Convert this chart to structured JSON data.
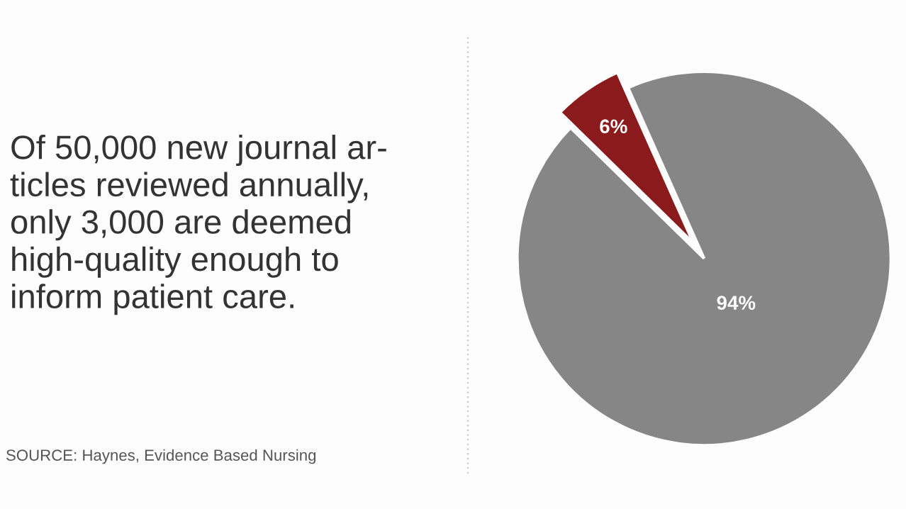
{
  "chart_data": {
    "type": "pie",
    "title": "Of 50,000 new journal ar-\nticles reviewed annually,\nonly 3,000 are deemed\nhigh-quality enough to\ninform patient care.",
    "categories": [
      null,
      null
    ],
    "values": [
      6,
      94
    ],
    "colors": [
      "#8b1a1c",
      "#868686"
    ],
    "value_labels": [
      "6%",
      "94%"
    ],
    "annotations": [
      "SOURCE: Haynes, Evidence Based Nursing"
    ],
    "legend": false
  }
}
